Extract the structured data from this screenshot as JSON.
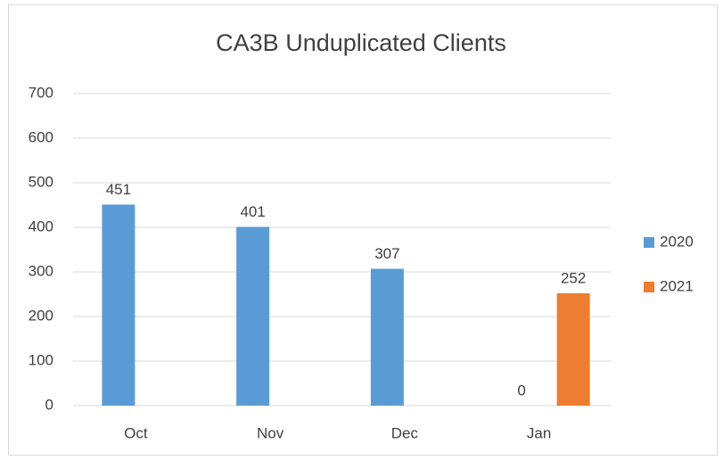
{
  "chart_data": {
    "type": "bar",
    "title": "CA3B Unduplicated Clients",
    "categories": [
      "Oct",
      "Nov",
      "Dec",
      "Jan"
    ],
    "series": [
      {
        "name": "2020",
        "color": "#5b9bd5",
        "values": [
          451,
          401,
          307,
          0
        ]
      },
      {
        "name": "2021",
        "color": "#ed7d31",
        "values": [
          null,
          null,
          null,
          252
        ]
      }
    ],
    "ylim": [
      0,
      700
    ],
    "yticks": [
      0,
      100,
      200,
      300,
      400,
      500,
      600,
      700
    ],
    "grid": true,
    "legend": "right"
  }
}
